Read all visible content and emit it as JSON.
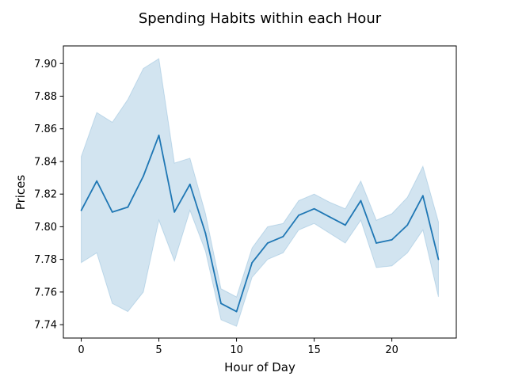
{
  "chart_data": {
    "type": "line",
    "title": "Spending Habits within each Hour",
    "xlabel": "Hour of Day",
    "ylabel": "Prices",
    "xlim": [
      -1.15,
      24.15
    ],
    "ylim": [
      7.7318,
      7.9108
    ],
    "xticks": [
      0,
      5,
      10,
      15,
      20
    ],
    "xtick_labels": [
      "0",
      "5",
      "10",
      "15",
      "20"
    ],
    "yticks": [
      7.74,
      7.76,
      7.78,
      7.8,
      7.82,
      7.84,
      7.86,
      7.88,
      7.9
    ],
    "ytick_labels": [
      "7.74",
      "7.76",
      "7.78",
      "7.80",
      "7.82",
      "7.84",
      "7.86",
      "7.88",
      "7.90"
    ],
    "grid": false,
    "colors": {
      "line": "#1f77b4",
      "band": "#1f77b4"
    },
    "series": [
      {
        "x": [
          0,
          1,
          2,
          3,
          4,
          5,
          6,
          7,
          8,
          9,
          10,
          11,
          12,
          13,
          14,
          15,
          16,
          17,
          18,
          19,
          20,
          21,
          22,
          23
        ],
        "y": [
          7.81,
          7.828,
          7.809,
          7.812,
          7.831,
          7.856,
          7.809,
          7.826,
          7.796,
          7.753,
          7.748,
          7.778,
          7.79,
          7.794,
          7.807,
          7.811,
          7.806,
          7.801,
          7.816,
          7.79,
          7.792,
          7.801,
          7.819,
          7.78
        ],
        "ci_lower": [
          7.778,
          7.784,
          7.753,
          7.748,
          7.76,
          7.804,
          7.779,
          7.81,
          7.785,
          7.743,
          7.739,
          7.769,
          7.78,
          7.784,
          7.798,
          7.802,
          7.796,
          7.79,
          7.804,
          7.775,
          7.776,
          7.784,
          7.798,
          7.757
        ],
        "ci_upper": [
          7.843,
          7.87,
          7.864,
          7.878,
          7.897,
          7.903,
          7.839,
          7.842,
          7.808,
          7.762,
          7.757,
          7.787,
          7.8,
          7.802,
          7.816,
          7.82,
          7.815,
          7.811,
          7.828,
          7.804,
          7.808,
          7.818,
          7.837,
          7.803
        ]
      }
    ]
  }
}
